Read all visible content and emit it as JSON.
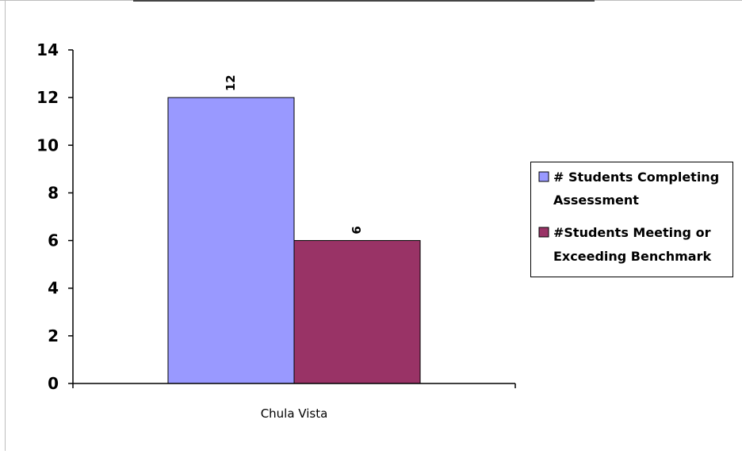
{
  "chart_data": {
    "type": "bar",
    "categories": [
      "Chula Vista"
    ],
    "series": [
      {
        "name": "# Students Completing Assessment",
        "values": [
          12
        ],
        "color": "#9999ff"
      },
      {
        "name": "#Students Meeting or Exceeding Benchmark",
        "values": [
          6
        ],
        "color": "#993366"
      }
    ],
    "legend_lines": [
      [
        "# Students Completing",
        "Assessment"
      ],
      [
        "#Students Meeting or",
        "Exceeding Benchmark"
      ]
    ],
    "ylim": [
      0,
      14
    ],
    "yticks": [
      "0",
      "2",
      "4",
      "6",
      "8",
      "10",
      "12",
      "14"
    ],
    "data_labels": [
      "12",
      "6"
    ],
    "grid": false,
    "legend": "right"
  }
}
